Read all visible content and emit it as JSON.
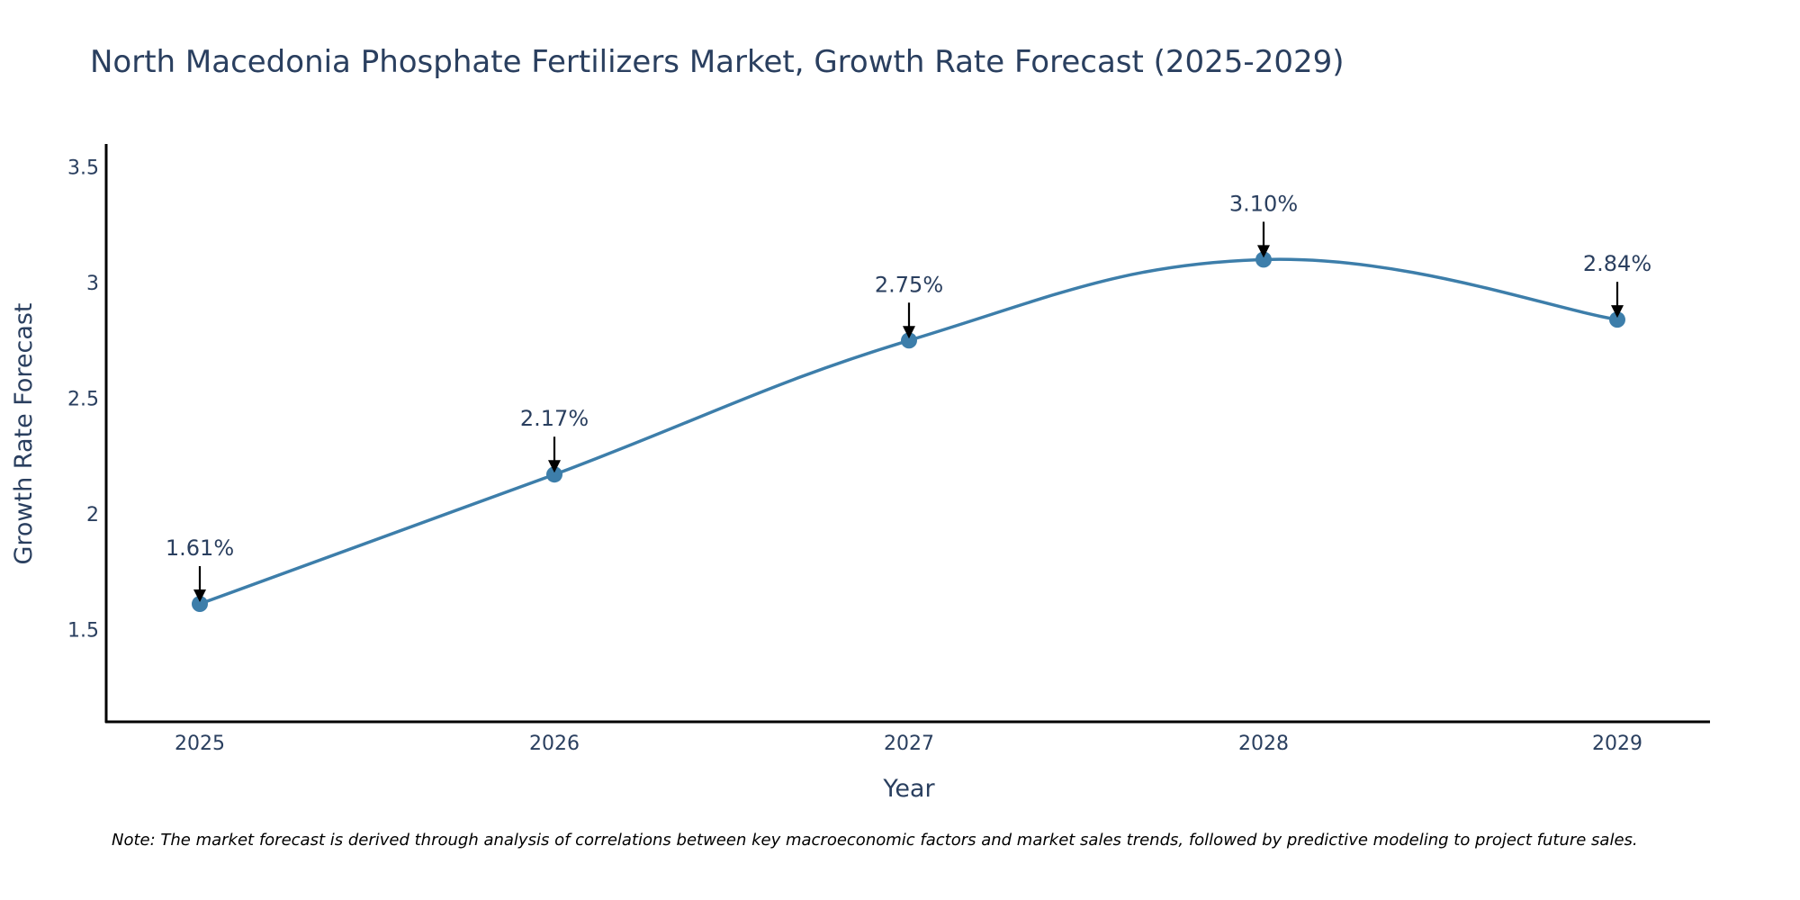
{
  "chart_data": {
    "type": "line",
    "title": "North Macedonia Phosphate Fertilizers Market, Growth Rate Forecast (2025-2029)",
    "xlabel": "Year",
    "ylabel": "Growth Rate Forecast",
    "categories": [
      "2025",
      "2026",
      "2027",
      "2028",
      "2029"
    ],
    "series": [
      {
        "name": "Growth Rate Forecast",
        "values": [
          1.61,
          2.17,
          2.75,
          3.1,
          2.84
        ],
        "labels": [
          "1.61%",
          "2.17%",
          "2.75%",
          "3.10%",
          "2.84%"
        ],
        "color": "#3d7eaa"
      }
    ],
    "yticks": [
      1.5,
      2,
      2.5,
      3,
      3.5
    ],
    "ytick_labels": [
      "1.5",
      "2",
      "2.5",
      "3",
      "3.5"
    ],
    "ylim": [
      1.1,
      3.6
    ],
    "grid": false,
    "note": "Note: The market forecast is derived through analysis of correlations between key macroeconomic factors and market sales trends, followed by predictive modeling to project future sales."
  },
  "colors": {
    "text": "#2a3f5f",
    "axis": "#000000",
    "line": "#3d7eaa",
    "arrow": "#000000"
  }
}
